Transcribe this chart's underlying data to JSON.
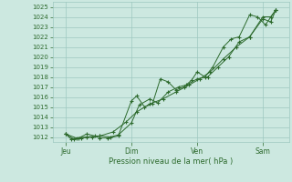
{
  "title": "Pression niveau de la mer( hPa )",
  "bg_color": "#cce8e0",
  "grid_color": "#9dc8bf",
  "line_color": "#2d6a2d",
  "ylim": [
    1011.5,
    1025.5
  ],
  "yticks": [
    1012,
    1013,
    1014,
    1015,
    1016,
    1017,
    1018,
    1019,
    1020,
    1021,
    1022,
    1023,
    1024,
    1025
  ],
  "xtick_labels": [
    "Jeu",
    "Dim",
    "Ven",
    "Sam"
  ],
  "xtick_positions": [
    0.5,
    3.0,
    5.5,
    8.0
  ],
  "xlim": [
    0.0,
    9.0
  ],
  "series1_x": [
    0.5,
    0.7,
    1.0,
    1.3,
    1.6,
    1.8,
    2.1,
    2.5,
    3.0,
    3.2,
    3.5,
    3.8,
    4.1,
    4.4,
    4.7,
    5.0,
    5.3,
    5.5,
    5.8,
    6.1,
    6.5,
    6.8,
    7.1,
    7.5,
    7.8,
    8.1,
    8.5
  ],
  "series1_y": [
    1012.3,
    1011.8,
    1011.9,
    1012.3,
    1012.1,
    1011.9,
    1011.9,
    1012.1,
    1015.6,
    1016.1,
    1015.0,
    1015.3,
    1017.8,
    1017.5,
    1016.7,
    1017.0,
    1017.7,
    1018.5,
    1018.0,
    1019.0,
    1021.0,
    1021.8,
    1022.0,
    1024.2,
    1024.0,
    1023.2,
    1024.7
  ],
  "series2_x": [
    0.5,
    0.8,
    1.1,
    1.5,
    1.8,
    2.2,
    2.5,
    3.0,
    3.3,
    3.7,
    4.0,
    4.4,
    4.8,
    5.1,
    5.5,
    5.9,
    6.3,
    6.7,
    7.1,
    7.5,
    8.0,
    8.3,
    8.5
  ],
  "series2_y": [
    1012.3,
    1011.8,
    1011.9,
    1012.0,
    1012.1,
    1012.0,
    1012.2,
    1013.4,
    1015.2,
    1015.8,
    1015.4,
    1016.5,
    1017.0,
    1017.2,
    1017.8,
    1018.0,
    1019.0,
    1020.0,
    1021.5,
    1022.0,
    1024.0,
    1024.0,
    1024.7
  ],
  "series3_x": [
    0.5,
    0.9,
    1.3,
    1.8,
    2.3,
    2.8,
    3.2,
    3.7,
    4.2,
    4.7,
    5.2,
    5.6,
    6.0,
    6.5,
    7.0,
    7.5,
    8.0,
    8.3,
    8.5
  ],
  "series3_y": [
    1012.3,
    1011.9,
    1012.0,
    1012.1,
    1012.5,
    1013.5,
    1014.5,
    1015.3,
    1015.8,
    1016.5,
    1017.2,
    1017.8,
    1018.5,
    1019.8,
    1021.0,
    1022.0,
    1023.8,
    1023.5,
    1024.7
  ]
}
